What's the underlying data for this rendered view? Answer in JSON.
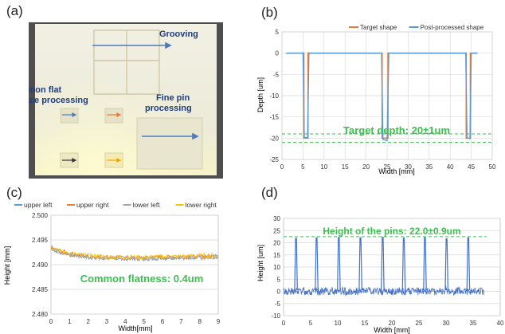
{
  "panels": {
    "a": "(a)",
    "b": "(b)",
    "c": "(c)",
    "d": "(d)"
  },
  "photo": {
    "labels": {
      "grooving": "Grooving",
      "common_flat_line1": "Common flat",
      "common_flat_line2": "surface processing",
      "fine_pin_line1": "Fine pin",
      "fine_pin_line2": "processing"
    },
    "colors": {
      "plate": "#efeedd",
      "background": "#4e4e4e",
      "text": "#1f3d7a",
      "arrow": "#4f7bbd"
    }
  },
  "chart_data": [
    {
      "id": "b",
      "type": "line",
      "xlabel": "Width [mm]",
      "ylabel": "Depth [um]",
      "xlim": [
        0,
        50
      ],
      "ylim": [
        -25,
        5
      ],
      "xticks": [
        0,
        5,
        10,
        15,
        20,
        25,
        30,
        35,
        40,
        45,
        50
      ],
      "yticks": [
        5,
        0,
        -5,
        -10,
        -15,
        -20,
        -25
      ],
      "legend_position": "top-right",
      "annotation": "Target depth: 20±1um",
      "reference_lines": [
        -19,
        -21
      ],
      "series": [
        {
          "name": "Target shape",
          "color": "#ed7d31",
          "x": [
            1,
            5.2,
            5.2,
            6.2,
            6.2,
            23.8,
            23.8,
            25.2,
            25.2,
            43.8,
            43.8,
            44.8,
            44.8,
            46.5
          ],
          "y": [
            0,
            0,
            -20,
            -20,
            0,
            0,
            -20,
            -20,
            0,
            0,
            -20,
            -20,
            0,
            0
          ]
        },
        {
          "name": "Post-processed shape",
          "color": "#5b9bd5",
          "x": [
            1,
            5.0,
            5.3,
            6.1,
            6.4,
            23.7,
            24.0,
            25.0,
            25.4,
            43.7,
            44.0,
            44.7,
            45.0,
            46.5
          ],
          "y": [
            0,
            0,
            -19.8,
            -19.9,
            0,
            0,
            -20.3,
            -20.6,
            0,
            0,
            -19.9,
            -20.1,
            0,
            0
          ]
        }
      ]
    },
    {
      "id": "c",
      "type": "line",
      "xlabel": "Width[mm]",
      "ylabel": "Height [mm]",
      "xlim": [
        0,
        9
      ],
      "ylim": [
        2.48,
        2.5
      ],
      "xticks": [
        0,
        1,
        2,
        3,
        4,
        5,
        6,
        7,
        8,
        9
      ],
      "yticks": [
        2.5,
        2.495,
        2.49,
        2.485,
        2.48
      ],
      "ytick_labels": [
        "2.500",
        "2.495",
        "2.490",
        "2.485",
        "2.480"
      ],
      "legend_position": "top",
      "annotation": "Common flatness: 0.4um",
      "series": [
        {
          "name": "upper left",
          "color": "#5b9bd5",
          "x": [
            0,
            0.5,
            1,
            1.5,
            2,
            3,
            4,
            5,
            6,
            7,
            8,
            9
          ],
          "y": [
            2.4933,
            2.4926,
            2.4921,
            2.4918,
            2.4916,
            2.4914,
            2.4913,
            2.4913,
            2.4914,
            2.4915,
            2.4915,
            2.4916
          ]
        },
        {
          "name": "upper right",
          "color": "#ed7d31",
          "x": [
            0,
            0.5,
            1,
            1.5,
            2,
            3,
            4,
            5,
            6,
            7,
            8,
            9
          ],
          "y": [
            2.4934,
            2.4927,
            2.4922,
            2.4919,
            2.4917,
            2.4915,
            2.4914,
            2.4914,
            2.4915,
            2.4916,
            2.4916,
            2.4917
          ]
        },
        {
          "name": "lower left",
          "color": "#a5a5a5",
          "x": [
            0,
            0.5,
            1,
            1.5,
            2,
            3,
            4,
            5,
            6,
            7,
            8,
            9
          ],
          "y": [
            2.4932,
            2.4925,
            2.492,
            2.4917,
            2.4915,
            2.4913,
            2.4912,
            2.4912,
            2.4913,
            2.4914,
            2.4914,
            2.4915
          ]
        },
        {
          "name": "lower right",
          "color": "#ffc000",
          "x": [
            0,
            0.5,
            1,
            1.5,
            2,
            3,
            4,
            5,
            6,
            7,
            8,
            9
          ],
          "y": [
            2.4935,
            2.4928,
            2.4923,
            2.492,
            2.4918,
            2.4916,
            2.4915,
            2.4915,
            2.4916,
            2.4917,
            2.4918,
            2.4919
          ]
        }
      ]
    },
    {
      "id": "d",
      "type": "line",
      "xlabel": "Width [mm]",
      "ylabel": "Height [um]",
      "xlim": [
        0,
        40
      ],
      "ylim": [
        -10,
        30
      ],
      "xticks": [
        0,
        5,
        10,
        15,
        20,
        25,
        30,
        35,
        40
      ],
      "yticks": [
        30,
        25,
        20,
        15,
        10,
        5,
        0,
        -5,
        -10
      ],
      "annotation": "Height of the pins: 22.0±0.9um",
      "reference_lines": [
        22.5
      ],
      "pin_positions": [
        2.3,
        6.1,
        10.2,
        14.2,
        18.3,
        22.2,
        26.1,
        30.1,
        34.1
      ],
      "pin_heights": [
        21.8,
        22.0,
        22.2,
        22.0,
        22.3,
        21.9,
        22.1,
        21.6,
        22.0
      ],
      "series": [
        {
          "name": "",
          "color": "#4472c4",
          "x_start": 0,
          "x_end": 37,
          "baseline": 0
        }
      ]
    }
  ]
}
